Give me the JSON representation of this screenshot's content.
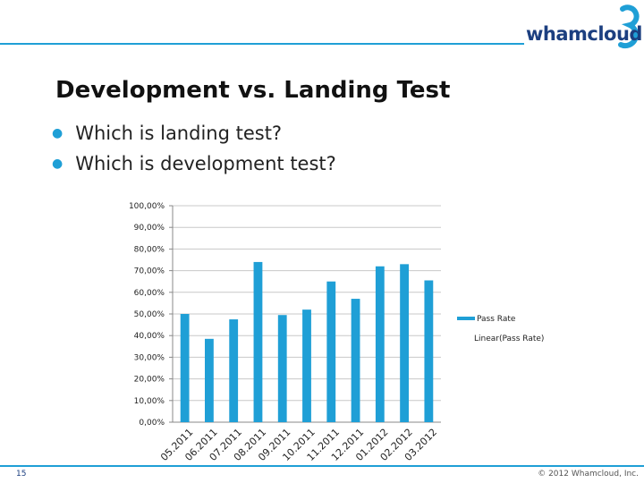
{
  "logo": {
    "text": "whamcloud"
  },
  "slide": {
    "title": "Development vs. Landing Test",
    "bullets": [
      "Which is landing test?",
      "Which is development test?"
    ]
  },
  "footer": {
    "page_number": "15",
    "copyright": "© 2012 Whamcloud, Inc."
  },
  "colors": {
    "accent": "#1f9fd6",
    "brand": "#1c3f80",
    "bar": "#1f9fd6"
  },
  "chart_data": {
    "type": "bar",
    "title": "",
    "xlabel": "",
    "ylabel": "",
    "categories": [
      "05.2011",
      "06.2011",
      "07.2011",
      "08.2011",
      "09.2011",
      "10.2011",
      "11.2011",
      "12.2011",
      "01.2012",
      "02.2012",
      "03.2012"
    ],
    "series": [
      {
        "name": "Pass Rate",
        "values": [
          50,
          38.5,
          47.5,
          74,
          49.5,
          52,
          65,
          57,
          72,
          73,
          65.5
        ]
      }
    ],
    "trendline": {
      "name": "Linear(Pass Rate)"
    },
    "yticks": [
      "0,00%",
      "10,00%",
      "20,00%",
      "30,00%",
      "40,00%",
      "50,00%",
      "60,00%",
      "70,00%",
      "80,00%",
      "90,00%",
      "100,00%"
    ],
    "ylim": [
      0,
      100
    ],
    "grid": true,
    "legend_position": "right"
  }
}
